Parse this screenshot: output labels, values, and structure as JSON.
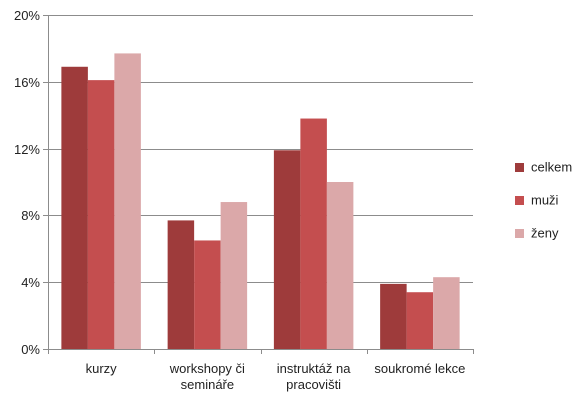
{
  "chart_data": {
    "type": "bar",
    "title": "",
    "xlabel": "",
    "ylabel": "",
    "categories": [
      [
        "kurzy"
      ],
      [
        "workshopy či",
        "semináře"
      ],
      [
        "instruktáž na",
        "pracovišti"
      ],
      [
        "soukromé lekce"
      ]
    ],
    "series": [
      {
        "name": "celkem",
        "values": [
          16.9,
          7.7,
          11.9,
          3.9
        ],
        "color": "#9e3b3b"
      },
      {
        "name": "muži",
        "values": [
          16.1,
          6.5,
          13.8,
          3.4
        ],
        "color": "#c44e4f"
      },
      {
        "name": "ženy",
        "values": [
          17.7,
          8.8,
          10.0,
          4.3
        ],
        "color": "#dba8a9"
      }
    ],
    "ylim": [
      0,
      20
    ],
    "yticks": [
      0,
      4,
      8,
      12,
      16,
      20
    ],
    "ytick_labels": [
      "0%",
      "4%",
      "8%",
      "12%",
      "16%",
      "20%"
    ],
    "grid": true,
    "legend_position": "right"
  }
}
